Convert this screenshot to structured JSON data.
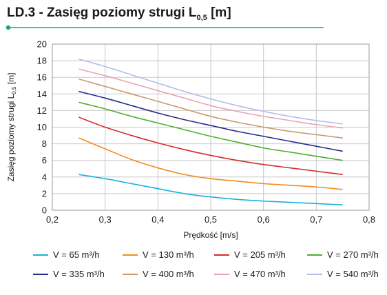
{
  "title": {
    "prefix": "LD.3 - Zasięg poziomy strugi L",
    "subscript": "0,5",
    "suffix": " [m]"
  },
  "accent_color": "#1ea56a",
  "chart_data": {
    "type": "line",
    "xlabel": "Prędkość [m/s]",
    "ylabel_prefix": "Zasięg poziomy strugi L",
    "ylabel_subscript": "0,5",
    "ylabel_suffix": " [m]",
    "xlim": [
      0.2,
      0.8
    ],
    "ylim": [
      0,
      20
    ],
    "x_ticks": [
      "0,2",
      "0,3",
      "0,4",
      "0,5",
      "0,6",
      "0,7",
      "0,8"
    ],
    "y_ticks": [
      "0",
      "2",
      "4",
      "6",
      "8",
      "10",
      "12",
      "14",
      "16",
      "18",
      "20"
    ],
    "grid": true,
    "legend_position": "bottom",
    "x": [
      0.25,
      0.3,
      0.35,
      0.4,
      0.45,
      0.5,
      0.55,
      0.6,
      0.65,
      0.7,
      0.75
    ],
    "series": [
      {
        "name": "V = 65 m³/h",
        "color": "#1ab0e0",
        "values": [
          4.3,
          3.8,
          3.2,
          2.6,
          2.0,
          1.6,
          1.3,
          1.1,
          0.95,
          0.8,
          0.65
        ]
      },
      {
        "name": "V = 130 m³/h",
        "color": "#f28c1c",
        "values": [
          8.7,
          7.4,
          6.1,
          5.1,
          4.3,
          3.8,
          3.5,
          3.2,
          3.0,
          2.8,
          2.5
        ]
      },
      {
        "name": "V = 205 m³/h",
        "color": "#d42a2a",
        "values": [
          11.2,
          10.0,
          9.0,
          8.1,
          7.3,
          6.6,
          6.0,
          5.5,
          5.1,
          4.7,
          4.3
        ]
      },
      {
        "name": "V = 270 m³/h",
        "color": "#4caf2c",
        "values": [
          13.0,
          12.2,
          11.3,
          10.5,
          9.7,
          8.9,
          8.2,
          7.5,
          7.0,
          6.5,
          6.0
        ]
      },
      {
        "name": "V = 335 m³/h",
        "color": "#2a2a8c",
        "values": [
          14.3,
          13.5,
          12.6,
          11.7,
          10.9,
          10.2,
          9.5,
          8.9,
          8.3,
          7.7,
          7.1
        ]
      },
      {
        "name": "V = 400 m³/h",
        "color": "#c89a6a",
        "values": [
          15.8,
          14.9,
          14.0,
          13.1,
          12.2,
          11.3,
          10.6,
          10.0,
          9.5,
          9.1,
          8.7
        ]
      },
      {
        "name": "V = 470 m³/h",
        "color": "#eba3b4",
        "values": [
          17.0,
          16.2,
          15.3,
          14.4,
          13.5,
          12.6,
          11.9,
          11.3,
          10.8,
          10.3,
          9.9
        ]
      },
      {
        "name": "V = 540 m³/h",
        "color": "#b4bce8",
        "values": [
          18.2,
          17.3,
          16.3,
          15.3,
          14.3,
          13.4,
          12.6,
          11.9,
          11.3,
          10.8,
          10.4
        ]
      }
    ]
  }
}
